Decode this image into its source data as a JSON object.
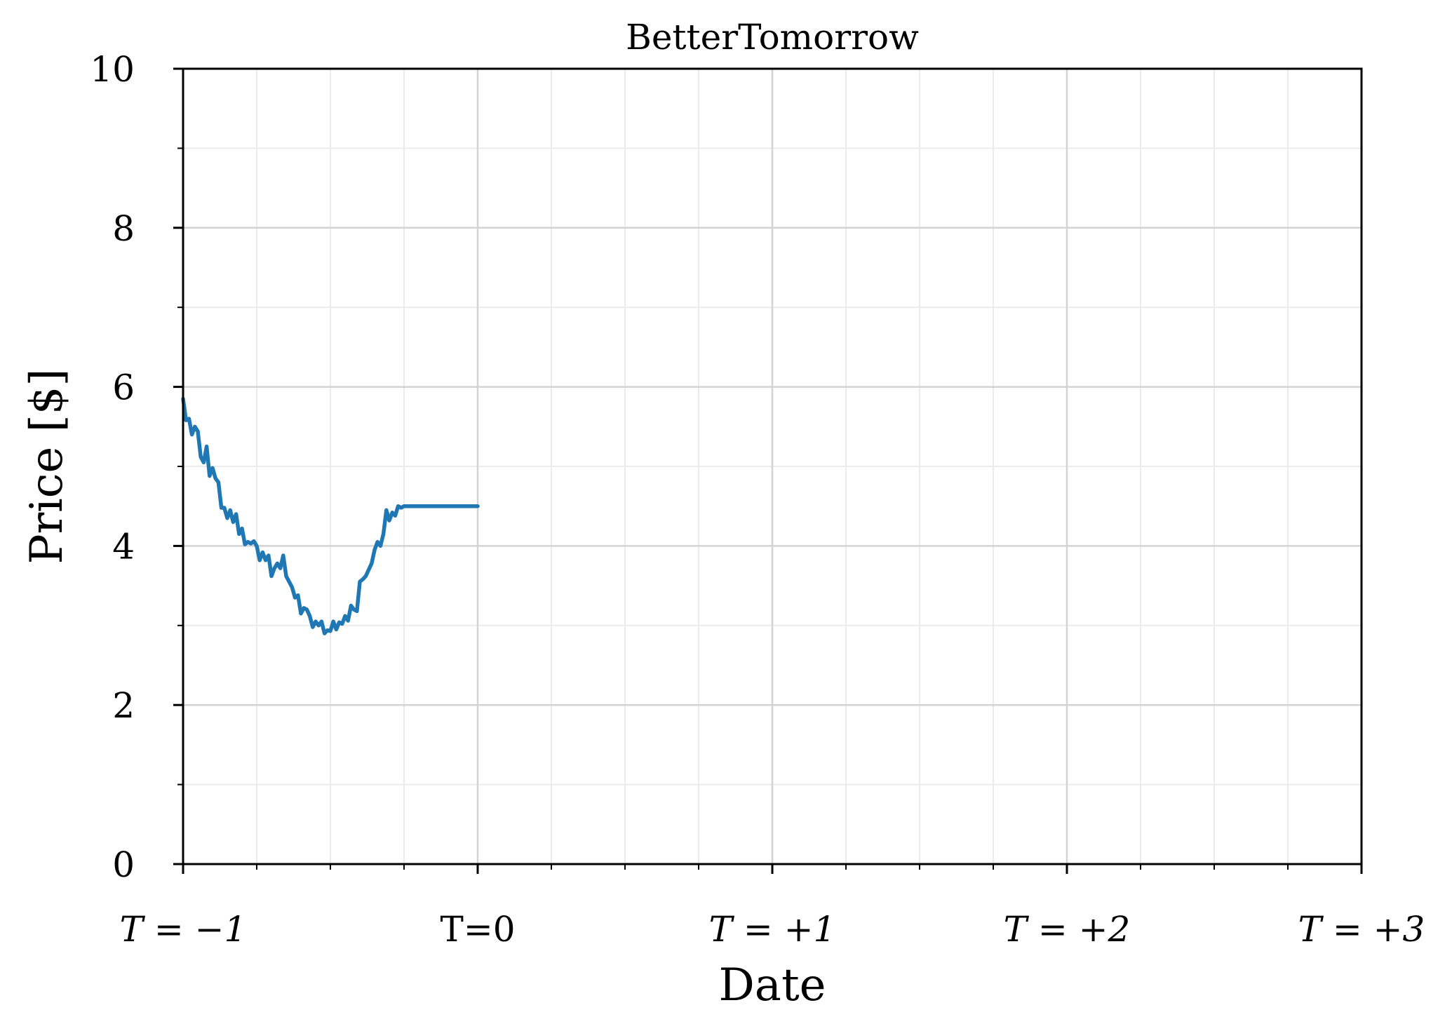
{
  "chart_data": {
    "type": "line",
    "title": "BetterTomorrow",
    "xlabel": "Date",
    "ylabel": "Price [$]",
    "xlim": [
      -1,
      3
    ],
    "ylim": [
      0,
      10
    ],
    "x_ticks": [
      {
        "value": -1,
        "label": "T = −1",
        "italic": true
      },
      {
        "value": 0,
        "label": "T=0",
        "italic": false
      },
      {
        "value": 1,
        "label": "T = +1",
        "italic": true
      },
      {
        "value": 2,
        "label": "T = +2",
        "italic": true
      },
      {
        "value": 3,
        "label": "T = +3",
        "italic": true
      }
    ],
    "x_minor_step": 0.25,
    "y_ticks": [
      0,
      2,
      4,
      6,
      8,
      10
    ],
    "y_minor_step": 1,
    "grid": true,
    "series_color": "#1f77b4",
    "series": [
      {
        "x": [
          -1.0,
          -0.99,
          -0.98,
          -0.97,
          -0.96,
          -0.95,
          -0.94,
          -0.93,
          -0.92,
          -0.91,
          -0.9,
          -0.89,
          -0.88,
          -0.87,
          -0.86,
          -0.85,
          -0.84,
          -0.83,
          -0.82,
          -0.81,
          -0.8,
          -0.79,
          -0.78,
          -0.77,
          -0.76,
          -0.75,
          -0.74,
          -0.73,
          -0.72,
          -0.71,
          -0.7,
          -0.69,
          -0.68,
          -0.67,
          -0.66,
          -0.65,
          -0.64,
          -0.63,
          -0.62,
          -0.61,
          -0.6,
          -0.59,
          -0.58,
          -0.57,
          -0.56,
          -0.55,
          -0.54,
          -0.53,
          -0.52,
          -0.51,
          -0.5,
          -0.49,
          -0.48,
          -0.47,
          -0.46,
          -0.45,
          -0.44,
          -0.43,
          -0.42,
          -0.41,
          -0.4,
          -0.39,
          -0.38,
          -0.37,
          -0.36,
          -0.35,
          -0.34,
          -0.33,
          -0.32,
          -0.31,
          -0.3,
          -0.29,
          -0.28,
          -0.27,
          -0.26,
          -0.25,
          -0.24,
          -0.23,
          -0.22,
          -0.21,
          -0.2,
          -0.19,
          -0.18,
          -0.17,
          -0.16,
          -0.15,
          -0.14,
          -0.13,
          -0.12,
          -0.11,
          -0.1,
          -0.09,
          -0.08,
          -0.07,
          -0.06,
          -0.05,
          -0.04,
          -0.03,
          -0.02,
          -0.01,
          0.0
        ],
        "values": [
          5.85,
          5.58,
          5.6,
          5.4,
          5.5,
          5.44,
          5.12,
          5.05,
          5.25,
          4.88,
          4.98,
          4.85,
          4.8,
          4.48,
          4.48,
          4.35,
          4.45,
          4.3,
          4.4,
          4.15,
          4.22,
          4.02,
          4.05,
          4.03,
          4.06,
          4.0,
          3.82,
          3.92,
          3.82,
          3.88,
          3.62,
          3.72,
          3.78,
          3.72,
          3.88,
          3.62,
          3.55,
          3.48,
          3.35,
          3.38,
          3.15,
          3.22,
          3.2,
          3.12,
          2.98,
          3.05,
          3.0,
          3.05,
          2.9,
          2.94,
          2.93,
          3.05,
          2.95,
          3.04,
          3.02,
          3.12,
          3.06,
          3.25,
          3.2,
          3.18,
          3.55,
          3.58,
          3.62,
          3.7,
          3.78,
          3.95,
          4.05,
          4.0,
          4.15,
          4.45,
          4.32,
          4.42,
          4.38,
          4.5,
          4.48,
          4.5,
          4.5,
          4.5,
          4.5,
          4.5,
          4.5,
          4.5,
          4.5,
          4.5,
          4.5,
          4.5,
          4.5,
          4.5,
          4.5,
          4.5,
          4.5,
          4.5,
          4.5,
          4.5,
          4.5,
          4.5,
          4.5,
          4.5,
          4.5,
          4.5,
          4.5
        ]
      }
    ]
  }
}
